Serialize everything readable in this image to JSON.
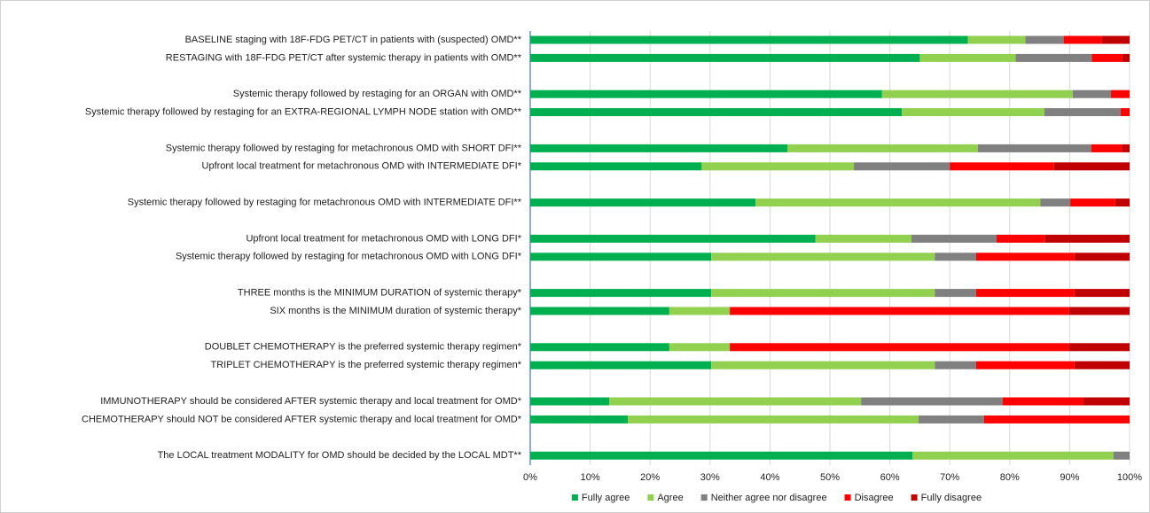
{
  "chart_data": {
    "type": "stacked-bar-horizontal",
    "categories": [
      "BASELINE staging with 18F-FDG PET/CT in patients with (suspected) OMD**",
      "RESTAGING with 18F-FDG PET/CT after systemic therapy in patients with OMD**",
      null,
      "Systemic therapy followed by restaging for an ORGAN with OMD**",
      "Systemic therapy followed by restaging for an EXTRA-REGIONAL LYMPH NODE station with OMD**",
      null,
      "Systemic therapy followed by restaging for metachronous OMD with SHORT DFI**",
      "Upfront local treatment for metachronous OMD with INTERMEDIATE DFI*",
      null,
      "Systemic therapy followed by restaging for metachronous OMD with INTERMEDIATE DFI**",
      null,
      "Upfront local treatment for metachronous OMD with LONG DFI*",
      "Systemic therapy followed by restaging for metachronous OMD with LONG DFI*",
      null,
      "THREE months is the MINIMUM DURATION of systemic therapy*",
      "SIX months is the MINIMUM duration of systemic therapy*",
      null,
      "DOUBLET CHEMOTHERAPY is the preferred systemic therapy regimen*",
      "TRIPLET CHEMOTHERAPY is the preferred systemic therapy regimen*",
      null,
      "IMMUNOTHERAPY should be considered AFTER systemic therapy and local treatment for OMD*",
      "CHEMOTHERAPY should NOT be considered AFTER systemic therapy and local treatment for OMD*",
      null,
      "The LOCAL treatment MODALITY for OMD should be decided by the LOCAL MDT**"
    ],
    "series": [
      {
        "name": "Fully agree",
        "color": "#00b050",
        "values": [
          73,
          65,
          null,
          58.7,
          62,
          null,
          42.9,
          28.6,
          null,
          37.6,
          null,
          47.6,
          30.2,
          null,
          30.2,
          23.2,
          null,
          23.2,
          30.2,
          null,
          13.2,
          16.3,
          null,
          63.8
        ]
      },
      {
        "name": "Agree",
        "color": "#92d050",
        "values": [
          9.6,
          16,
          null,
          31.8,
          23.8,
          null,
          31.8,
          25.4,
          null,
          47.5,
          null,
          16,
          37.3,
          null,
          37.3,
          10.1,
          null,
          10.1,
          37.3,
          null,
          42,
          48.5,
          null,
          33.5
        ]
      },
      {
        "name": "Neither agree nor disagree",
        "color": "#808080",
        "values": [
          6.4,
          12.7,
          null,
          6.4,
          12.7,
          null,
          18.9,
          16,
          null,
          5,
          null,
          14.2,
          6.9,
          null,
          6.9,
          0,
          null,
          0,
          6.9,
          null,
          23.6,
          10.9,
          null,
          2.7
        ]
      },
      {
        "name": "Disagree",
        "color": "#ff0000",
        "values": [
          6.4,
          5.1,
          null,
          3.1,
          1.5,
          null,
          5.1,
          17.4,
          null,
          7.5,
          null,
          8.1,
          16.4,
          null,
          16.4,
          56.6,
          null,
          56.6,
          16.4,
          null,
          13.4,
          24.3,
          null,
          0
        ]
      },
      {
        "name": "Fully disagree",
        "color": "#c00000",
        "values": [
          4.6,
          1.2,
          null,
          0,
          0,
          null,
          1.3,
          12.6,
          null,
          2.4,
          null,
          14.1,
          9.2,
          null,
          9.2,
          10.1,
          null,
          10.1,
          9.2,
          null,
          7.8,
          0,
          null,
          0
        ]
      }
    ],
    "xlim": [
      0,
      100
    ],
    "xticks": [
      {
        "value": 0,
        "label": "0%"
      },
      {
        "value": 10,
        "label": "10%"
      },
      {
        "value": 20,
        "label": "20%"
      },
      {
        "value": 30,
        "label": "30%"
      },
      {
        "value": 40,
        "label": "40%"
      },
      {
        "value": 50,
        "label": "50%"
      },
      {
        "value": 60,
        "label": "60%"
      },
      {
        "value": 70,
        "label": "70%"
      },
      {
        "value": 80,
        "label": "80%"
      },
      {
        "value": 90,
        "label": "90%"
      },
      {
        "value": 100,
        "label": "100%"
      }
    ],
    "grid": true,
    "legend": "bottom"
  }
}
